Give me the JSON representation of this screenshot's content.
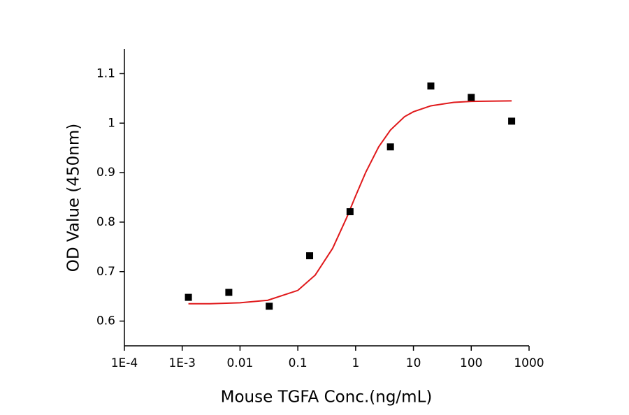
{
  "chart_data": {
    "type": "scatter",
    "x_label": "Mouse TGFA Conc.(ng/mL)",
    "y_label": "OD Value (450nm)",
    "xscale": "log",
    "xlim": [
      0.0001,
      1000
    ],
    "xticks": [
      {
        "value": 0.0001,
        "label": "1E-4"
      },
      {
        "value": 0.001,
        "label": "1E-3"
      },
      0.01,
      0.1,
      1,
      10,
      100,
      1000
    ],
    "ylim": [
      0.55,
      1.15
    ],
    "yticks": [
      0.6,
      0.7,
      0.8,
      0.9,
      1.0,
      1.1
    ],
    "series": [
      {
        "type": "scatter",
        "color": "#000000",
        "x": [
          0.00128,
          0.0064,
          0.032,
          0.16,
          0.8,
          4,
          20,
          100,
          500
        ],
        "values": [
          0.648,
          0.658,
          0.63,
          0.732,
          0.821,
          0.952,
          1.075,
          1.052,
          1.004
        ]
      },
      {
        "type": "line",
        "color": "#e0191b",
        "x": [
          0.00128,
          0.003,
          0.01,
          0.03,
          0.1,
          0.2,
          0.4,
          0.7,
          1,
          1.5,
          2.5,
          4,
          7,
          10,
          20,
          50,
          100,
          500
        ],
        "values": [
          0.635,
          0.635,
          0.637,
          0.642,
          0.662,
          0.693,
          0.747,
          0.809,
          0.853,
          0.901,
          0.952,
          0.986,
          1.013,
          1.023,
          1.035,
          1.042,
          1.044,
          1.045
        ]
      }
    ]
  }
}
